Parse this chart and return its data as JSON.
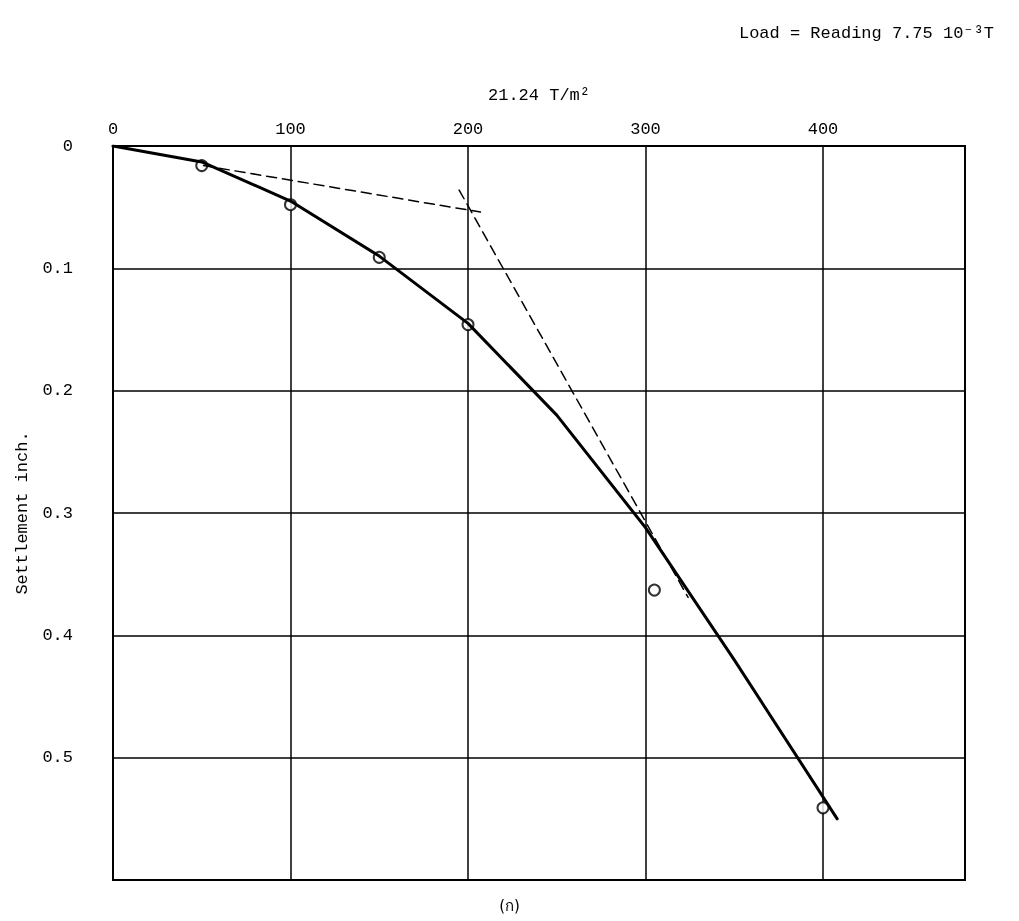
{
  "chart_data": {
    "type": "scatter",
    "title": "Load = Reading 7.75 10⁻³T",
    "xlabel": "21.24 T/m²",
    "ylabel": "Settlement inch.",
    "annotations": [
      "(ก)"
    ],
    "xlim": [
      0,
      480
    ],
    "xticks": [
      0,
      100,
      200,
      300,
      400
    ],
    "ylim": [
      0.6,
      0
    ],
    "yticks": [
      0,
      0.1,
      0.2,
      0.3,
      0.4,
      0.5
    ],
    "grid": true,
    "series": [
      {
        "marker": "circle",
        "color": "#000000",
        "x": [
          50,
          100,
          150,
          200,
          305,
          400
        ],
        "values": [
          0.016,
          0.048,
          0.091,
          0.146,
          0.363,
          0.541
        ]
      },
      {
        "type": "line",
        "marker": "none",
        "line_style": "solid",
        "color": "#000000",
        "x": [
          0,
          50,
          100,
          150,
          200,
          250,
          300,
          350,
          408
        ],
        "values": [
          0,
          0.013,
          0.045,
          0.09,
          0.145,
          0.22,
          0.312,
          0.42,
          0.55
        ]
      },
      {
        "type": "line",
        "marker": "none",
        "line_style": "dashed",
        "color": "#000000",
        "x": [
          51,
          207
        ],
        "values": [
          0.016,
          0.054
        ]
      },
      {
        "type": "line",
        "marker": "none",
        "line_style": "dashed",
        "color": "#000000",
        "x": [
          195,
          324
        ],
        "values": [
          0.036,
          0.369
        ]
      }
    ]
  }
}
